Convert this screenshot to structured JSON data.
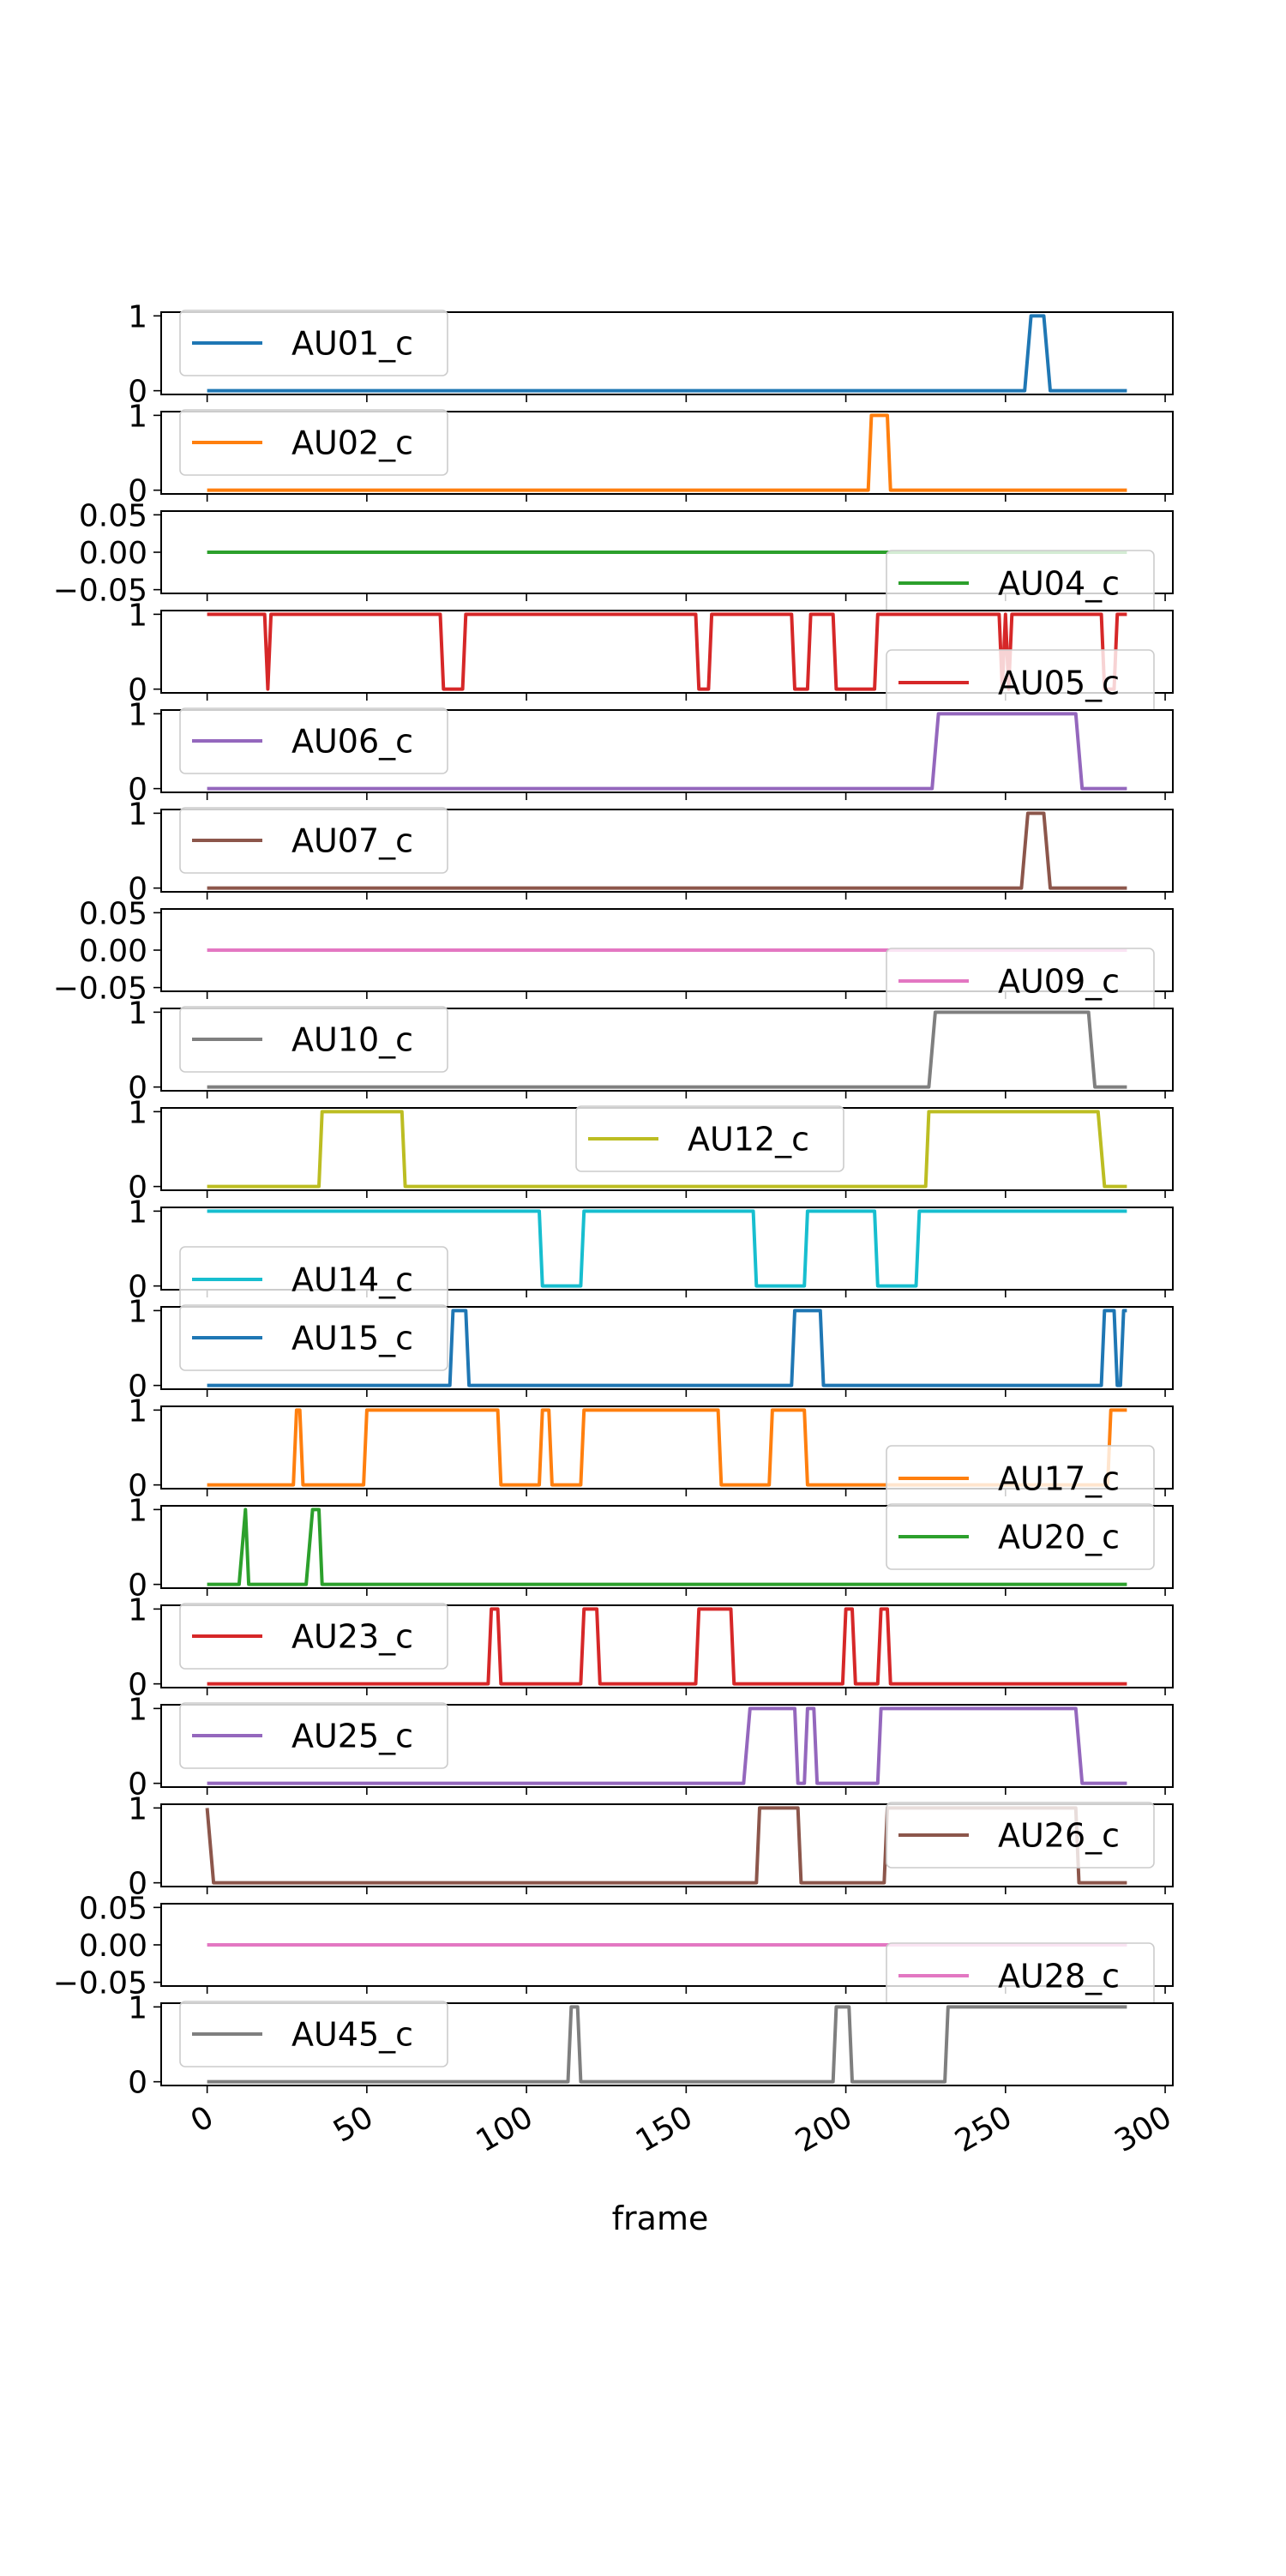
{
  "chart_data": {
    "type": "line",
    "xlabel": "frame",
    "xlim": [
      -14.4,
      302.4
    ],
    "x_ticks": [
      "0",
      "50",
      "100",
      "150",
      "200",
      "250",
      "300"
    ],
    "x_tick_values": [
      0,
      50,
      100,
      150,
      200,
      250,
      300
    ],
    "x_range": [
      0,
      288
    ],
    "grid": false,
    "subplots": [
      {
        "name": "AU01_c",
        "color": "#1f77b4",
        "legend": "upper-left",
        "ylim": [
          -0.05,
          1.05
        ],
        "y_ticks": [
          "0",
          "1"
        ],
        "y_tick_values": [
          0,
          1
        ],
        "segments": [
          [
            0,
            0
          ],
          [
            256,
            0
          ],
          [
            258,
            1
          ],
          [
            262,
            1
          ],
          [
            264,
            0
          ],
          [
            288,
            0
          ]
        ]
      },
      {
        "name": "AU02_c",
        "color": "#ff7f0e",
        "legend": "upper-left",
        "ylim": [
          -0.05,
          1.05
        ],
        "y_ticks": [
          "0",
          "1"
        ],
        "y_tick_values": [
          0,
          1
        ],
        "segments": [
          [
            0,
            0
          ],
          [
            207,
            0
          ],
          [
            208,
            1
          ],
          [
            213,
            1
          ],
          [
            214,
            0
          ],
          [
            288,
            0
          ]
        ]
      },
      {
        "name": "AU04_c",
        "color": "#2ca02c",
        "legend": "lower-right",
        "ylim": [
          -0.055,
          0.055
        ],
        "y_ticks": [
          "0.05",
          "0.00",
          "−0.05"
        ],
        "y_tick_values": [
          0.05,
          0,
          -0.05
        ],
        "segments": [
          [
            0,
            0
          ],
          [
            288,
            0
          ]
        ]
      },
      {
        "name": "AU05_c",
        "color": "#d62728",
        "legend": "lower-right",
        "ylim": [
          -0.05,
          1.05
        ],
        "y_ticks": [
          "0",
          "1"
        ],
        "y_tick_values": [
          0,
          1
        ],
        "segments": [
          [
            0,
            1
          ],
          [
            18,
            1
          ],
          [
            19,
            0
          ],
          [
            20,
            1
          ],
          [
            73,
            1
          ],
          [
            74,
            0
          ],
          [
            80,
            0
          ],
          [
            81,
            1
          ],
          [
            153,
            1
          ],
          [
            154,
            0
          ],
          [
            157,
            0
          ],
          [
            158,
            1
          ],
          [
            183,
            1
          ],
          [
            184,
            0
          ],
          [
            188,
            0
          ],
          [
            189,
            1
          ],
          [
            196,
            1
          ],
          [
            197,
            0
          ],
          [
            209,
            0
          ],
          [
            210,
            1
          ],
          [
            248,
            1
          ],
          [
            249,
            0
          ],
          [
            250,
            1
          ],
          [
            251,
            0
          ],
          [
            252,
            1
          ],
          [
            280,
            1
          ],
          [
            281,
            0
          ],
          [
            284,
            0
          ],
          [
            285,
            1
          ],
          [
            288,
            1
          ]
        ]
      },
      {
        "name": "AU06_c",
        "color": "#9467bd",
        "legend": "upper-left",
        "ylim": [
          -0.05,
          1.05
        ],
        "y_ticks": [
          "0",
          "1"
        ],
        "y_tick_values": [
          0,
          1
        ],
        "segments": [
          [
            0,
            0
          ],
          [
            227,
            0
          ],
          [
            229,
            1
          ],
          [
            272,
            1
          ],
          [
            274,
            0
          ],
          [
            288,
            0
          ]
        ]
      },
      {
        "name": "AU07_c",
        "color": "#8c564b",
        "legend": "upper-left",
        "ylim": [
          -0.05,
          1.05
        ],
        "y_ticks": [
          "0",
          "1"
        ],
        "y_tick_values": [
          0,
          1
        ],
        "segments": [
          [
            0,
            0
          ],
          [
            255,
            0
          ],
          [
            257,
            1
          ],
          [
            262,
            1
          ],
          [
            264,
            0
          ],
          [
            288,
            0
          ]
        ]
      },
      {
        "name": "AU09_c",
        "color": "#e377c2",
        "legend": "lower-right",
        "ylim": [
          -0.055,
          0.055
        ],
        "y_ticks": [
          "0.05",
          "0.00",
          "−0.05"
        ],
        "y_tick_values": [
          0.05,
          0,
          -0.05
        ],
        "segments": [
          [
            0,
            0
          ],
          [
            288,
            0
          ]
        ]
      },
      {
        "name": "AU10_c",
        "color": "#7f7f7f",
        "legend": "upper-left",
        "ylim": [
          -0.05,
          1.05
        ],
        "y_ticks": [
          "0",
          "1"
        ],
        "y_tick_values": [
          0,
          1
        ],
        "segments": [
          [
            0,
            0
          ],
          [
            226,
            0
          ],
          [
            228,
            1
          ],
          [
            276,
            1
          ],
          [
            278,
            0
          ],
          [
            288,
            0
          ]
        ]
      },
      {
        "name": "AU12_c",
        "color": "#bcbd22",
        "legend": "upper-center",
        "ylim": [
          -0.05,
          1.05
        ],
        "y_ticks": [
          "0",
          "1"
        ],
        "y_tick_values": [
          0,
          1
        ],
        "segments": [
          [
            0,
            0
          ],
          [
            35,
            0
          ],
          [
            36,
            1
          ],
          [
            61,
            1
          ],
          [
            62,
            0
          ],
          [
            225,
            0
          ],
          [
            226,
            1
          ],
          [
            279,
            1
          ],
          [
            281,
            0
          ],
          [
            288,
            0
          ]
        ]
      },
      {
        "name": "AU14_c",
        "color": "#17becf",
        "legend": "lower-left",
        "ylim": [
          -0.05,
          1.05
        ],
        "y_ticks": [
          "0",
          "1"
        ],
        "y_tick_values": [
          0,
          1
        ],
        "segments": [
          [
            0,
            1
          ],
          [
            104,
            1
          ],
          [
            105,
            0
          ],
          [
            117,
            0
          ],
          [
            118,
            1
          ],
          [
            171,
            1
          ],
          [
            172,
            0
          ],
          [
            187,
            0
          ],
          [
            188,
            1
          ],
          [
            209,
            1
          ],
          [
            210,
            0
          ],
          [
            222,
            0
          ],
          [
            223,
            1
          ],
          [
            288,
            1
          ]
        ]
      },
      {
        "name": "AU15_c",
        "color": "#1f77b4",
        "legend": "upper-left",
        "ylim": [
          -0.05,
          1.05
        ],
        "y_ticks": [
          "0",
          "1"
        ],
        "y_tick_values": [
          0,
          1
        ],
        "segments": [
          [
            0,
            0
          ],
          [
            76,
            0
          ],
          [
            77,
            1
          ],
          [
            81,
            1
          ],
          [
            82,
            0
          ],
          [
            183,
            0
          ],
          [
            184,
            1
          ],
          [
            192,
            1
          ],
          [
            193,
            0
          ],
          [
            280,
            0
          ],
          [
            281,
            1
          ],
          [
            284,
            1
          ],
          [
            285,
            0
          ],
          [
            286,
            0
          ],
          [
            287,
            1
          ],
          [
            288,
            1
          ]
        ]
      },
      {
        "name": "AU17_c",
        "color": "#ff7f0e",
        "legend": "lower-right",
        "ylim": [
          -0.05,
          1.05
        ],
        "y_ticks": [
          "0",
          "1"
        ],
        "y_tick_values": [
          0,
          1
        ],
        "segments": [
          [
            0,
            0
          ],
          [
            27,
            0
          ],
          [
            28,
            1
          ],
          [
            29,
            1
          ],
          [
            30,
            0
          ],
          [
            49,
            0
          ],
          [
            50,
            1
          ],
          [
            91,
            1
          ],
          [
            92,
            0
          ],
          [
            104,
            0
          ],
          [
            105,
            1
          ],
          [
            107,
            1
          ],
          [
            108,
            0
          ],
          [
            117,
            0
          ],
          [
            118,
            1
          ],
          [
            160,
            1
          ],
          [
            161,
            0
          ],
          [
            176,
            0
          ],
          [
            177,
            1
          ],
          [
            187,
            1
          ],
          [
            188,
            0
          ],
          [
            282,
            0
          ],
          [
            283,
            1
          ],
          [
            288,
            1
          ]
        ]
      },
      {
        "name": "AU20_c",
        "color": "#2ca02c",
        "legend": "upper-right",
        "ylim": [
          -0.05,
          1.05
        ],
        "y_ticks": [
          "0",
          "1"
        ],
        "y_tick_values": [
          0,
          1
        ],
        "segments": [
          [
            0,
            0
          ],
          [
            10,
            0
          ],
          [
            12,
            1
          ],
          [
            13,
            0
          ],
          [
            31,
            0
          ],
          [
            33,
            1
          ],
          [
            35,
            1
          ],
          [
            36,
            0
          ],
          [
            288,
            0
          ]
        ]
      },
      {
        "name": "AU23_c",
        "color": "#d62728",
        "legend": "upper-left",
        "ylim": [
          -0.05,
          1.05
        ],
        "y_ticks": [
          "0",
          "1"
        ],
        "y_tick_values": [
          0,
          1
        ],
        "segments": [
          [
            0,
            0
          ],
          [
            88,
            0
          ],
          [
            89,
            1
          ],
          [
            91,
            1
          ],
          [
            92,
            0
          ],
          [
            117,
            0
          ],
          [
            118,
            1
          ],
          [
            122,
            1
          ],
          [
            123,
            0
          ],
          [
            153,
            0
          ],
          [
            154,
            1
          ],
          [
            164,
            1
          ],
          [
            165,
            0
          ],
          [
            199,
            0
          ],
          [
            200,
            1
          ],
          [
            202,
            1
          ],
          [
            203,
            0
          ],
          [
            210,
            0
          ],
          [
            211,
            1
          ],
          [
            213,
            1
          ],
          [
            214,
            0
          ],
          [
            288,
            0
          ]
        ]
      },
      {
        "name": "AU25_c",
        "color": "#9467bd",
        "legend": "upper-left",
        "ylim": [
          -0.05,
          1.05
        ],
        "y_ticks": [
          "0",
          "1"
        ],
        "y_tick_values": [
          0,
          1
        ],
        "segments": [
          [
            0,
            0
          ],
          [
            168,
            0
          ],
          [
            170,
            1
          ],
          [
            184,
            1
          ],
          [
            185,
            0
          ],
          [
            187,
            0
          ],
          [
            188,
            1
          ],
          [
            190,
            1
          ],
          [
            191,
            0
          ],
          [
            210,
            0
          ],
          [
            211,
            1
          ],
          [
            272,
            1
          ],
          [
            274,
            0
          ],
          [
            288,
            0
          ]
        ]
      },
      {
        "name": "AU26_c",
        "color": "#8c564b",
        "legend": "upper-right",
        "ylim": [
          -0.05,
          1.05
        ],
        "y_ticks": [
          "0",
          "1"
        ],
        "y_tick_values": [
          0,
          1
        ],
        "segments": [
          [
            0,
            1
          ],
          [
            2,
            0
          ],
          [
            172,
            0
          ],
          [
            173,
            1
          ],
          [
            185,
            1
          ],
          [
            186,
            0
          ],
          [
            212,
            0
          ],
          [
            213,
            1
          ],
          [
            272,
            1
          ],
          [
            273,
            0
          ],
          [
            288,
            0
          ]
        ]
      },
      {
        "name": "AU28_c",
        "color": "#e377c2",
        "legend": "lower-right",
        "ylim": [
          -0.055,
          0.055
        ],
        "y_ticks": [
          "0.05",
          "0.00",
          "−0.05"
        ],
        "y_tick_values": [
          0.05,
          0,
          -0.05
        ],
        "segments": [
          [
            0,
            0
          ],
          [
            288,
            0
          ]
        ]
      },
      {
        "name": "AU45_c",
        "color": "#7f7f7f",
        "legend": "upper-left",
        "ylim": [
          -0.05,
          1.05
        ],
        "y_ticks": [
          "0",
          "1"
        ],
        "y_tick_values": [
          0,
          1
        ],
        "segments": [
          [
            0,
            0
          ],
          [
            113,
            0
          ],
          [
            114,
            1
          ],
          [
            116,
            1
          ],
          [
            117,
            0
          ],
          [
            196,
            0
          ],
          [
            197,
            1
          ],
          [
            201,
            1
          ],
          [
            202,
            0
          ],
          [
            231,
            0
          ],
          [
            232,
            1
          ],
          [
            288,
            1
          ]
        ]
      }
    ]
  }
}
